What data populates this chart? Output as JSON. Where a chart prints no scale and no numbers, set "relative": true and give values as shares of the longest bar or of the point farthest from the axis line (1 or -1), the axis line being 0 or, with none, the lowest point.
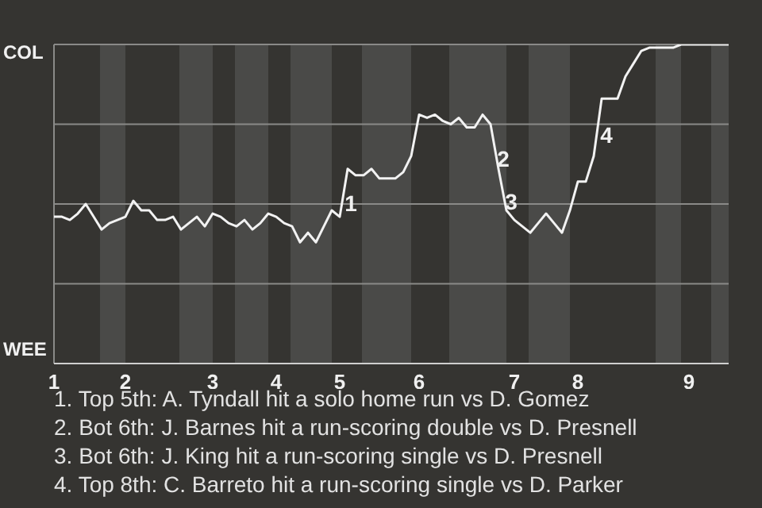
{
  "chart_data": {
    "type": "line",
    "relative": true,
    "categories": [
      "1",
      null,
      null,
      null,
      null,
      null,
      null,
      null,
      null,
      "2",
      null,
      null,
      null,
      null,
      null,
      null,
      null,
      null,
      null,
      null,
      "3",
      null,
      null,
      null,
      null,
      null,
      null,
      null,
      "4",
      null,
      null,
      null,
      null,
      null,
      null,
      null,
      "5",
      null,
      null,
      null,
      null,
      null,
      null,
      null,
      null,
      null,
      "6",
      null,
      null,
      null,
      null,
      null,
      null,
      null,
      null,
      null,
      null,
      null,
      "7",
      null,
      null,
      null,
      null,
      null,
      null,
      null,
      "8",
      null,
      null,
      null,
      null,
      null,
      null,
      null,
      null,
      null,
      null,
      null,
      null,
      null,
      "9",
      null,
      null,
      null,
      null,
      null
    ],
    "series": [
      {
        "color": "#f2f2f2",
        "values": [
          0.46,
          0.46,
          0.45,
          0.47,
          0.5,
          0.46,
          0.42,
          0.44,
          0.45,
          0.46,
          0.51,
          0.48,
          0.48,
          0.45,
          0.45,
          0.46,
          0.42,
          0.44,
          0.46,
          0.43,
          0.47,
          0.46,
          0.44,
          0.43,
          0.45,
          0.42,
          0.44,
          0.47,
          0.46,
          0.44,
          0.43,
          0.38,
          0.41,
          0.38,
          0.43,
          0.48,
          0.46,
          0.61,
          0.59,
          0.59,
          0.61,
          0.58,
          0.58,
          0.58,
          0.6,
          0.65,
          0.78,
          0.77,
          0.78,
          0.76,
          0.75,
          0.77,
          0.74,
          0.74,
          0.78,
          0.75,
          0.61,
          0.48,
          0.45,
          0.43,
          0.41,
          0.44,
          0.47,
          0.44,
          0.41,
          0.48,
          0.57,
          0.57,
          0.65,
          0.83,
          0.83,
          0.83,
          0.9,
          0.94,
          0.98,
          0.99,
          0.99,
          0.99,
          0.99,
          1,
          1,
          1,
          1,
          1,
          1,
          1
        ]
      }
    ],
    "grid": "y",
    "marker": "none",
    "annotations": [
      "COL",
      "WEE",
      "1",
      "2",
      "3",
      "4",
      "1. Top 5th: A. Tyndall hit a solo home run vs D. Gomez",
      "2. Bot 6th: J. Barnes hit a run-scoring double vs D. Presnell",
      "3. Bot 6th: J. King hit a run-scoring single vs D. Presnell",
      "4. Top 8th: C. Barreto hit a run-scoring single vs D. Parker"
    ]
  }
}
